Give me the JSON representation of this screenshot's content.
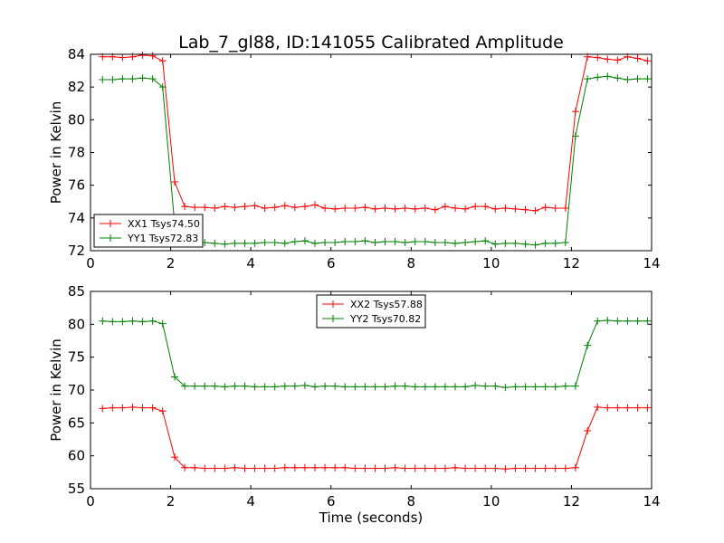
{
  "title": "Lab_7_gl88, ID:141055 Calibrated Amplitude",
  "chart_data": [
    {
      "type": "line",
      "xlabel": "",
      "ylabel": "Power in Kelvin",
      "xlim": [
        0,
        14
      ],
      "ylim": [
        72,
        84
      ],
      "xticks": [
        0,
        2,
        4,
        6,
        8,
        10,
        12,
        14
      ],
      "yticks": [
        72,
        74,
        76,
        78,
        80,
        82,
        84
      ],
      "legend_position": "lower-left",
      "x": [
        0.3,
        0.55,
        0.8,
        1.05,
        1.3,
        1.55,
        1.8,
        2.1,
        2.35,
        2.6,
        2.85,
        3.1,
        3.35,
        3.6,
        3.85,
        4.1,
        4.35,
        4.6,
        4.85,
        5.1,
        5.35,
        5.6,
        5.85,
        6.1,
        6.35,
        6.6,
        6.85,
        7.1,
        7.35,
        7.6,
        7.85,
        8.1,
        8.35,
        8.6,
        8.85,
        9.1,
        9.35,
        9.6,
        9.85,
        10.1,
        10.35,
        10.6,
        10.85,
        11.1,
        11.35,
        11.6,
        11.85,
        12.1,
        12.4,
        12.65,
        12.9,
        13.15,
        13.4,
        13.65,
        13.9
      ],
      "series": [
        {
          "name": "XX1 Tsys74.50",
          "color": "#ff0000",
          "values": [
            83.85,
            83.85,
            83.8,
            83.85,
            83.95,
            83.9,
            83.6,
            76.2,
            74.7,
            74.65,
            74.65,
            74.6,
            74.7,
            74.65,
            74.7,
            74.75,
            74.6,
            74.65,
            74.75,
            74.65,
            74.7,
            74.8,
            74.6,
            74.55,
            74.6,
            74.6,
            74.65,
            74.55,
            74.6,
            74.55,
            74.6,
            74.55,
            74.6,
            74.5,
            74.7,
            74.6,
            74.55,
            74.7,
            74.7,
            74.55,
            74.6,
            74.55,
            74.5,
            74.45,
            74.65,
            74.6,
            74.6,
            80.5,
            83.85,
            83.8,
            83.7,
            83.65,
            83.85,
            83.75,
            83.6
          ]
        },
        {
          "name": "YY1 Tsys72.83",
          "color": "#008000",
          "values": [
            82.45,
            82.45,
            82.5,
            82.5,
            82.55,
            82.5,
            82.0,
            73.6,
            72.6,
            72.5,
            72.5,
            72.45,
            72.4,
            72.45,
            72.45,
            72.45,
            72.5,
            72.5,
            72.45,
            72.55,
            72.6,
            72.45,
            72.5,
            72.5,
            72.55,
            72.55,
            72.6,
            72.5,
            72.55,
            72.55,
            72.5,
            72.55,
            72.55,
            72.5,
            72.5,
            72.45,
            72.5,
            72.55,
            72.6,
            72.4,
            72.45,
            72.45,
            72.4,
            72.35,
            72.45,
            72.45,
            72.5,
            79.0,
            82.5,
            82.6,
            82.65,
            82.55,
            82.45,
            82.5,
            82.5
          ]
        }
      ]
    },
    {
      "type": "line",
      "xlabel": "Time (seconds)",
      "ylabel": "Power in Kelvin",
      "xlim": [
        0,
        14
      ],
      "ylim": [
        55,
        85
      ],
      "xticks": [
        0,
        2,
        4,
        6,
        8,
        10,
        12,
        14
      ],
      "yticks": [
        55,
        60,
        65,
        70,
        75,
        80,
        85
      ],
      "legend_position": "top-center",
      "x": [
        0.3,
        0.55,
        0.8,
        1.05,
        1.3,
        1.55,
        1.8,
        2.1,
        2.35,
        2.6,
        2.85,
        3.1,
        3.35,
        3.6,
        3.85,
        4.1,
        4.35,
        4.6,
        4.85,
        5.1,
        5.35,
        5.6,
        5.85,
        6.1,
        6.35,
        6.6,
        6.85,
        7.1,
        7.35,
        7.6,
        7.85,
        8.1,
        8.35,
        8.6,
        8.85,
        9.1,
        9.35,
        9.6,
        9.85,
        10.1,
        10.35,
        10.6,
        10.85,
        11.1,
        11.35,
        11.6,
        11.85,
        12.1,
        12.4,
        12.65,
        12.9,
        13.15,
        13.4,
        13.65,
        13.9
      ],
      "series": [
        {
          "name": "XX2 Tsys57.88",
          "color": "#ff0000",
          "values": [
            67.2,
            67.3,
            67.3,
            67.4,
            67.3,
            67.3,
            66.8,
            59.8,
            58.2,
            58.2,
            58.1,
            58.1,
            58.1,
            58.2,
            58.1,
            58.1,
            58.1,
            58.1,
            58.2,
            58.2,
            58.2,
            58.2,
            58.2,
            58.2,
            58.2,
            58.1,
            58.1,
            58.1,
            58.1,
            58.2,
            58.1,
            58.1,
            58.1,
            58.1,
            58.1,
            58.2,
            58.1,
            58.1,
            58.1,
            58.1,
            58.0,
            58.1,
            58.1,
            58.1,
            58.1,
            58.1,
            58.1,
            58.2,
            63.8,
            67.4,
            67.3,
            67.3,
            67.3,
            67.3,
            67.3
          ]
        },
        {
          "name": "YY2 Tsys70.82",
          "color": "#008000",
          "values": [
            80.5,
            80.4,
            80.4,
            80.5,
            80.4,
            80.5,
            80.1,
            72.0,
            70.6,
            70.6,
            70.6,
            70.6,
            70.5,
            70.6,
            70.6,
            70.5,
            70.5,
            70.5,
            70.6,
            70.6,
            70.7,
            70.5,
            70.6,
            70.6,
            70.5,
            70.5,
            70.5,
            70.5,
            70.5,
            70.6,
            70.6,
            70.5,
            70.5,
            70.5,
            70.5,
            70.5,
            70.5,
            70.7,
            70.6,
            70.6,
            70.4,
            70.5,
            70.5,
            70.5,
            70.5,
            70.5,
            70.6,
            70.6,
            76.8,
            80.5,
            80.6,
            80.5,
            80.5,
            80.5,
            80.5
          ]
        }
      ]
    }
  ]
}
